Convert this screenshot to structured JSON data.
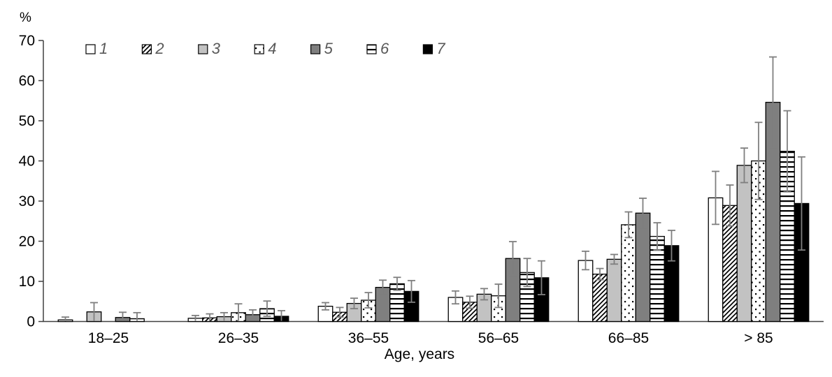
{
  "chart_data": {
    "type": "bar",
    "title": "",
    "ylabel": "%",
    "xlabel": "Age, years",
    "ylim": [
      0,
      70
    ],
    "yticks": [
      0,
      10,
      20,
      30,
      40,
      50,
      60,
      70
    ],
    "categories": [
      "18–25",
      "26–35",
      "36–55",
      "56–65",
      "66–85",
      "> 85"
    ],
    "grid": false,
    "legend_position": "top-left",
    "error_bars": true,
    "series": [
      {
        "name": "1",
        "fill": "white",
        "values": [
          0.4,
          0.8,
          3.8,
          6.0,
          15.2,
          30.8
        ],
        "errors": [
          0.7,
          0.7,
          0.9,
          1.6,
          2.3,
          6.6
        ]
      },
      {
        "name": "2",
        "fill": "diagonal-hatch",
        "values": [
          0,
          0.9,
          2.3,
          4.8,
          11.8,
          28.9
        ],
        "errors": [
          0,
          1.0,
          1.2,
          1.5,
          1.4,
          5.1
        ]
      },
      {
        "name": "3",
        "fill": "light-gray",
        "values": [
          2.4,
          1.2,
          4.5,
          6.8,
          15.5,
          38.9
        ],
        "errors": [
          2.3,
          1.0,
          1.3,
          1.4,
          1.2,
          4.3
        ]
      },
      {
        "name": "4",
        "fill": "dots",
        "values": [
          0,
          2.2,
          5.3,
          6.4,
          24.1,
          40.0
        ],
        "errors": [
          0,
          2.2,
          1.9,
          2.9,
          3.2,
          9.6
        ]
      },
      {
        "name": "5",
        "fill": "dark-gray",
        "values": [
          1.0,
          1.7,
          8.5,
          15.7,
          27.0,
          54.6
        ],
        "errors": [
          1.3,
          1.2,
          1.8,
          4.2,
          3.7,
          11.3
        ]
      },
      {
        "name": "6",
        "fill": "horizontal-lines",
        "values": [
          0.7,
          3.2,
          9.4,
          12.2,
          21.2,
          42.4
        ],
        "errors": [
          1.5,
          1.9,
          1.6,
          3.5,
          3.4,
          10.1
        ]
      },
      {
        "name": "7",
        "fill": "black",
        "values": [
          0,
          1.3,
          7.5,
          10.9,
          18.9,
          29.4
        ],
        "errors": [
          0,
          1.4,
          2.7,
          4.2,
          3.8,
          11.6
        ]
      }
    ],
    "colors": {
      "white": "#ffffff",
      "light_gray": "#c2c2c2",
      "dark_gray": "#7f7f7f",
      "black": "#000000",
      "bar_outline": "#000000",
      "error_bar": "#7f7f7f",
      "axis": "#404040",
      "legend_text": "#595959",
      "background": "#ffffff"
    }
  }
}
